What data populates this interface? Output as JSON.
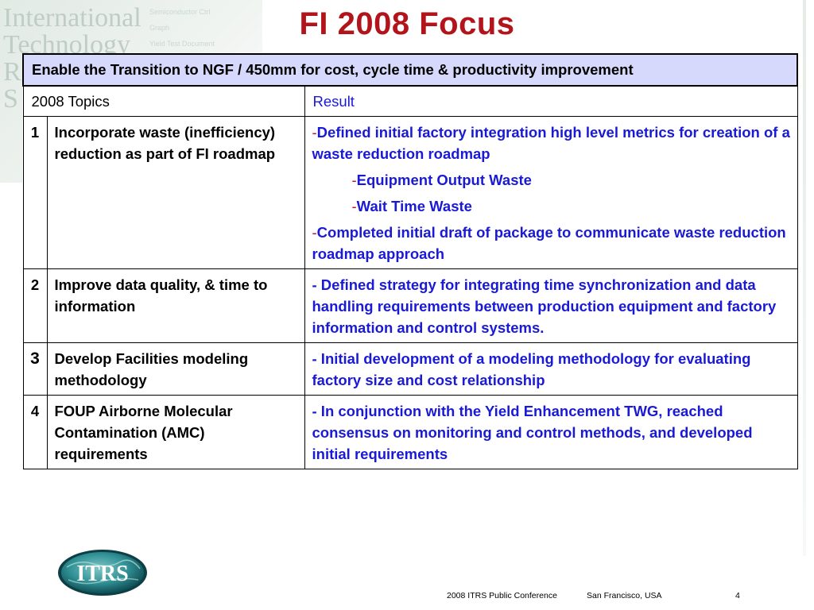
{
  "watermark": {
    "lines": [
      "International",
      "Technology",
      "R",
      "S"
    ],
    "menu": [
      "Semiconductor Ctrl",
      "Graph",
      "Yield Test Document"
    ]
  },
  "slide": {
    "title": "FI 2008 Focus"
  },
  "table": {
    "header": "Enable the Transition to NGF / 450mm for cost, cycle time & productivity improvement",
    "col_topics": "2008 Topics",
    "col_result": "Result",
    "rows": [
      {
        "num": "1",
        "topic": "Incorporate waste (inefficiency) reduction as part of FI roadmap",
        "results": [
          {
            "dash": "-",
            "text": "Defined initial factory integration high level metrics for creation of a waste reduction roadmap"
          },
          {
            "dash": "-",
            "text": "Equipment Output Waste"
          },
          {
            "dash": "-",
            "text": "Wait Time Waste"
          },
          {
            "dash": "-",
            "text": "Completed initial draft of package to communicate waste reduction roadmap approach"
          }
        ]
      },
      {
        "num": "2",
        "topic": "Improve data quality, & time to information",
        "result": "- Defined strategy for integrating time synchronization and data handling requirements between production equipment and factory information and control systems."
      },
      {
        "num": "3",
        "topic": "Develop Facilities modeling methodology",
        "result": "- Initial development of a modeling methodology for evaluating factory size and cost relationship"
      },
      {
        "num": "4",
        "topic": "FOUP Airborne Molecular Contamination (AMC) requirements",
        "result": "- In conjunction with the Yield Enhancement TWG, reached consensus on monitoring and control methods, and developed initial requirements"
      }
    ]
  },
  "logo": {
    "text": "ITRS",
    "icon": "itrs-globe-logo"
  },
  "footer": {
    "conference": "2008 ITRS Public Conference",
    "location": "San Francisco, USA",
    "page": "4"
  },
  "colors": {
    "title": "#b3141b",
    "header_bg": "#d6d9fb",
    "result_text": "#1a1ad6"
  }
}
